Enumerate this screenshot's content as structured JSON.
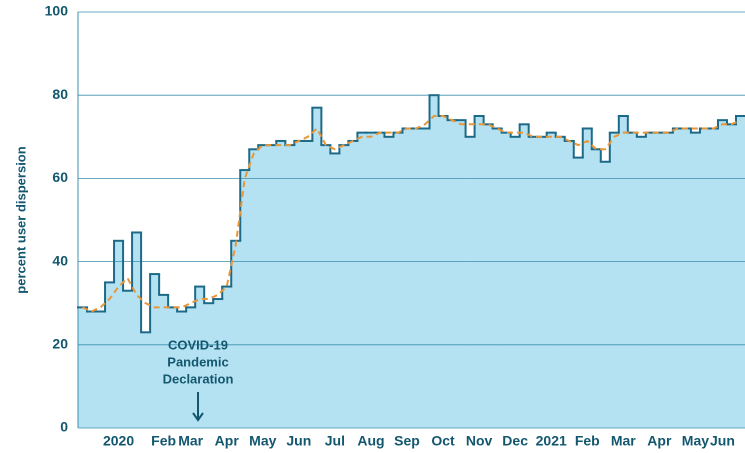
{
  "chart_data": {
    "type": "step",
    "y_label": "percent user dispersion",
    "annotation": [
      "COVID-19",
      "Pandemic",
      "Declaration"
    ],
    "categories": [
      null,
      null,
      null,
      null,
      "2020",
      null,
      null,
      null,
      null,
      "Feb",
      null,
      null,
      "Mar",
      null,
      null,
      null,
      "Apr",
      null,
      null,
      null,
      "May",
      null,
      null,
      null,
      "Jun",
      null,
      null,
      null,
      "Jul",
      null,
      null,
      null,
      "Aug",
      null,
      null,
      null,
      "Sep",
      null,
      null,
      null,
      "Oct",
      null,
      null,
      null,
      "Nov",
      null,
      null,
      null,
      "Dec",
      null,
      null,
      null,
      "2021",
      null,
      null,
      null,
      "Feb",
      null,
      null,
      null,
      "Mar",
      null,
      null,
      null,
      "Apr",
      null,
      null,
      null,
      "May",
      null,
      null,
      "Jun",
      null,
      null
    ],
    "series": [
      {
        "color": "#1c6a87",
        "fill": "#b5e2f2",
        "values": [
          29,
          28,
          28,
          35,
          45,
          33,
          47,
          23,
          37,
          32,
          29,
          28,
          29,
          34,
          30,
          31,
          34,
          45,
          62,
          67,
          68,
          68,
          69,
          68,
          69,
          69,
          77,
          68,
          66,
          68,
          69,
          71,
          71,
          71,
          70,
          71,
          72,
          72,
          72,
          80,
          75,
          74,
          74,
          70,
          75,
          73,
          72,
          71,
          70,
          73,
          70,
          70,
          71,
          70,
          69,
          65,
          72,
          67,
          64,
          71,
          75,
          71,
          70,
          71,
          71,
          71,
          72,
          72,
          71,
          72,
          72,
          74,
          73,
          75
        ]
      },
      {
        "color": "#e8963a",
        "dashed": true,
        "values": [
          29,
          28,
          29,
          31,
          34,
          36,
          32,
          30,
          29,
          29,
          29,
          29,
          30,
          31,
          31,
          32,
          34,
          44,
          60,
          66,
          68,
          68,
          68,
          68,
          69,
          70,
          72,
          68,
          67,
          68,
          69,
          70,
          70,
          71,
          71,
          71,
          72,
          72,
          73,
          75,
          75,
          74,
          73,
          73,
          73,
          73,
          72,
          71,
          71,
          71,
          70,
          70,
          70,
          70,
          69,
          68,
          69,
          67,
          67,
          70,
          71,
          71,
          71,
          71,
          71,
          71,
          72,
          72,
          72,
          72,
          72,
          73,
          73,
          74
        ]
      }
    ],
    "ylim": [
      0,
      100
    ],
    "yticks": [
      0,
      20,
      40,
      60,
      80,
      100
    ],
    "grid": true
  }
}
